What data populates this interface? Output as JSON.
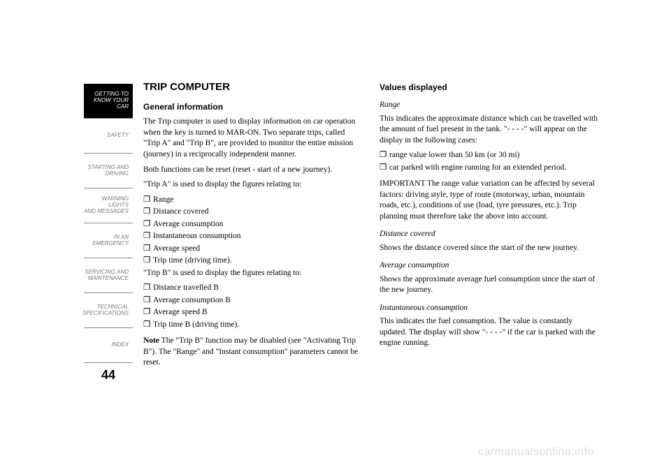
{
  "sidebar": {
    "tabs": [
      {
        "label": "GETTING TO\nKNOW YOUR CAR",
        "active": true
      },
      {
        "label": "SAFETY",
        "active": false
      },
      {
        "label": "STARTING AND\nDRIVING",
        "active": false
      },
      {
        "label": "WARNING LIGHTS\nAND MESSAGES",
        "active": false
      },
      {
        "label": "IN AN EMERGENCY",
        "active": false
      },
      {
        "label": "SERVICING AND\nMAINTENANCE",
        "active": false
      },
      {
        "label": "TECHNICAL\nSPECIFICATIONS",
        "active": false
      },
      {
        "label": "INDEX",
        "active": false
      }
    ]
  },
  "page_number": "44",
  "left": {
    "title": "TRIP COMPUTER",
    "h_general": "General information",
    "p1": "The Trip computer is used to display information on car operation when the key is turned to MAR-ON. Two separate trips, called \"Trip A\" and \"Trip B\", are provided to monitor the entire mission (journey) in a reciprocally independent manner.",
    "p2": "Both functions can be reset (reset - start of a new journey).",
    "p3": "\"Trip A\" is used to display the figures relating to:",
    "bullets_a": [
      "Range",
      "Distance covered",
      "Average consumption",
      "Instantaneous consumption",
      "Average speed",
      "Trip time (driving time)."
    ],
    "p4": "\"Trip B\" is used to display the figures relating to:",
    "bullets_b": [
      "Distance travelled B",
      "Average consumption B",
      "Average speed B",
      "Trip time B (driving time)."
    ],
    "note_label": "Note",
    "note_text": " The \"Trip B\" function may be disabled (see \"Activating Trip B\"). The \"Range\" and \"Instant consumption\" parameters cannot be reset."
  },
  "right": {
    "h_values": "Values displayed",
    "h_range": "Range",
    "p_range": "This indicates the approximate distance which can be travelled with the amount of fuel present in the tank. \"- - - -\" will appear on the display in the following cases:",
    "bullets_range": [
      "range value lower than 50 km (or 30 mi)",
      "car parked with engine running for an extended period."
    ],
    "p_important": "IMPORTANT The range value variation can be affected by several factors: driving style, type of route (motorway, urban, mountain roads, etc.), conditions of use (load, tyre pressures, etc.). Trip planning must therefore take the above into account.",
    "h_distance": "Distance covered",
    "p_distance": "Shows the distance covered since the start of the new journey.",
    "h_avg": "Average consumption",
    "p_avg": "Shows the approximate average fuel consumption since the start of the new journey.",
    "h_inst": "Instantaneous consumption",
    "p_inst": "This indicates the fuel consumption. The value is constantly updated. The display will show \"- - - -\" if the car is parked with the engine running."
  },
  "watermark": "carmanualsonline.info",
  "bullet_mark": "❒"
}
